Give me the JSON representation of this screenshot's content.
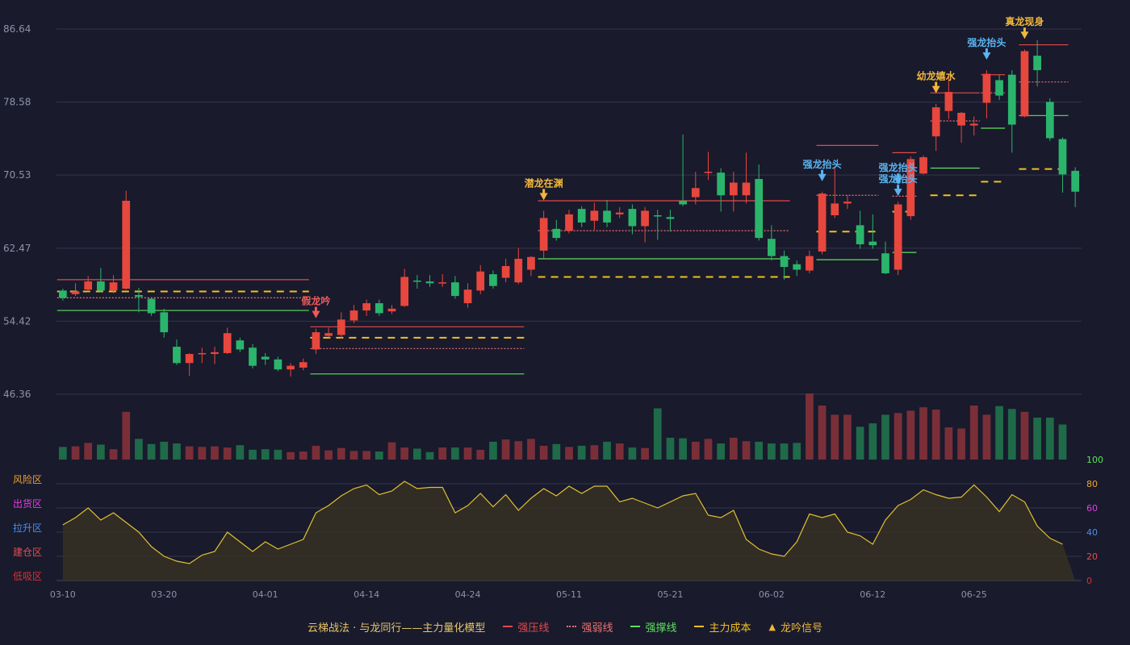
{
  "colors": {
    "background": "#191a2c",
    "up": "#e8473d",
    "down": "#2bb56c",
    "pressure": "#e14a4a",
    "weak": "#f07070",
    "support": "#5ee15e",
    "cost": "#f0c020",
    "signal_gold": "#f0b83a",
    "signal_blue": "#5ab4f0",
    "signal_red": "#f05a5a",
    "oscillator": "#e0c030"
  },
  "chart_data": {
    "type": "candlestick",
    "ylim": [
      46.36,
      86.64
    ],
    "yticks": [
      "86.64",
      "78.58",
      "70.53",
      "62.47",
      "54.42",
      "46.36"
    ],
    "x_labels": [
      {
        "i": 0,
        "label": "03-10"
      },
      {
        "i": 8,
        "label": "03-20"
      },
      {
        "i": 16,
        "label": "04-01"
      },
      {
        "i": 24,
        "label": "04-14"
      },
      {
        "i": 32,
        "label": "04-24"
      },
      {
        "i": 40,
        "label": "05-11"
      },
      {
        "i": 48,
        "label": "05-21"
      },
      {
        "i": 56,
        "label": "06-02"
      },
      {
        "i": 64,
        "label": "06-12"
      },
      {
        "i": 72,
        "label": "06-25"
      }
    ],
    "candles": [
      [
        57.8,
        57.0,
        58.0,
        56.7
      ],
      [
        57.4,
        57.7,
        58.6,
        57.2
      ],
      [
        57.9,
        58.8,
        59.4,
        57.7
      ],
      [
        58.8,
        57.8,
        60.3,
        57.6
      ],
      [
        57.8,
        58.7,
        59.5,
        57.5
      ],
      [
        58.0,
        67.7,
        68.8,
        57.9
      ],
      [
        57.3,
        57.1,
        58.1,
        55.4
      ],
      [
        56.9,
        55.3,
        57.0,
        55.0
      ],
      [
        55.4,
        53.2,
        55.8,
        52.6
      ],
      [
        51.6,
        49.8,
        52.4,
        49.6
      ],
      [
        49.8,
        50.8,
        50.9,
        48.4
      ],
      [
        50.9,
        50.9,
        51.5,
        49.8
      ],
      [
        50.8,
        51.0,
        51.6,
        49.7
      ],
      [
        50.9,
        53.1,
        53.7,
        50.8
      ],
      [
        52.3,
        51.3,
        52.6,
        51.0
      ],
      [
        51.5,
        49.5,
        51.9,
        49.2
      ],
      [
        50.5,
        50.2,
        50.9,
        49.6
      ],
      [
        50.2,
        49.1,
        50.5,
        48.9
      ],
      [
        49.1,
        49.5,
        49.8,
        48.3
      ],
      [
        49.3,
        49.9,
        50.3,
        49.0
      ],
      [
        51.3,
        53.2,
        53.6,
        50.8
      ],
      [
        52.8,
        53.1,
        53.7,
        52.6
      ],
      [
        52.9,
        54.6,
        55.4,
        52.5
      ],
      [
        54.5,
        55.6,
        56.2,
        54.2
      ],
      [
        55.6,
        56.4,
        56.8,
        55.0
      ],
      [
        56.4,
        55.3,
        56.8,
        55.0
      ],
      [
        55.5,
        55.8,
        56.2,
        55.2
      ],
      [
        56.1,
        59.3,
        60.2,
        56.0
      ],
      [
        58.9,
        58.8,
        59.5,
        58.0
      ],
      [
        58.8,
        58.6,
        59.5,
        58.2
      ],
      [
        58.6,
        58.7,
        59.6,
        58.2
      ],
      [
        58.7,
        57.2,
        59.4,
        56.9
      ],
      [
        56.4,
        57.9,
        58.6,
        55.9
      ],
      [
        57.8,
        59.9,
        60.6,
        57.4
      ],
      [
        59.6,
        58.3,
        60.0,
        58.0
      ],
      [
        59.2,
        60.5,
        61.3,
        58.7
      ],
      [
        58.7,
        61.3,
        62.5,
        58.5
      ],
      [
        60.1,
        61.5,
        61.6,
        59.4
      ],
      [
        62.2,
        65.8,
        66.6,
        61.3
      ],
      [
        64.6,
        63.6,
        65.6,
        63.3
      ],
      [
        64.4,
        66.2,
        66.7,
        64.1
      ],
      [
        66.8,
        65.3,
        67.1,
        64.8
      ],
      [
        65.5,
        66.6,
        67.5,
        64.5
      ],
      [
        66.6,
        65.3,
        67.8,
        64.8
      ],
      [
        66.2,
        66.4,
        67.0,
        65.8
      ],
      [
        66.8,
        64.9,
        67.3,
        64.0
      ],
      [
        64.9,
        66.6,
        67.0,
        63.1
      ],
      [
        66.1,
        66.0,
        66.7,
        63.4
      ],
      [
        65.9,
        65.7,
        66.7,
        64.3
      ],
      [
        67.7,
        67.3,
        75.0,
        67.1
      ],
      [
        68.1,
        69.1,
        70.9,
        67.3
      ],
      [
        70.9,
        70.9,
        73.1,
        70.0
      ],
      [
        70.8,
        68.3,
        71.3,
        66.5
      ],
      [
        68.3,
        69.7,
        70.9,
        66.5
      ],
      [
        68.3,
        69.7,
        73.0,
        67.4
      ],
      [
        70.1,
        63.6,
        71.7,
        63.3
      ],
      [
        63.5,
        61.6,
        65.0,
        61.1
      ],
      [
        61.6,
        60.4,
        62.2,
        59.0
      ],
      [
        60.7,
        60.1,
        61.1,
        59.4
      ],
      [
        60.0,
        61.6,
        62.2,
        59.7
      ],
      [
        62.1,
        68.5,
        68.7,
        61.8
      ],
      [
        66.1,
        67.4,
        71.5,
        65.8
      ],
      [
        67.4,
        67.6,
        68.3,
        66.8
      ],
      [
        65.0,
        62.9,
        66.6,
        62.4
      ],
      [
        63.2,
        62.8,
        66.2,
        62.4
      ],
      [
        61.9,
        59.7,
        63.2,
        59.6
      ],
      [
        60.1,
        67.3,
        67.6,
        59.5
      ],
      [
        66.0,
        72.3,
        72.6,
        65.6
      ],
      [
        70.7,
        72.5,
        72.7,
        70.6
      ],
      [
        74.8,
        78.0,
        78.4,
        73.2
      ],
      [
        77.6,
        79.7,
        81.4,
        76.7
      ],
      [
        76.0,
        77.4,
        77.5,
        74.1
      ],
      [
        76.0,
        76.2,
        77.0,
        74.9
      ],
      [
        78.5,
        81.7,
        82.1,
        76.8
      ],
      [
        81.0,
        79.3,
        81.6,
        78.8
      ],
      [
        81.6,
        76.1,
        82.1,
        73.0
      ],
      [
        77.0,
        84.2,
        84.4,
        76.9
      ],
      [
        83.7,
        82.1,
        85.4,
        80.3
      ],
      [
        78.6,
        74.6,
        79.0,
        74.3
      ],
      [
        74.5,
        70.6,
        74.7,
        68.6
      ],
      [
        71.0,
        68.7,
        71.4,
        67.0
      ]
    ],
    "volume": [
      22,
      23,
      29,
      26,
      18,
      83,
      36,
      27,
      31,
      28,
      23,
      22,
      23,
      21,
      25,
      17,
      18,
      17,
      13,
      14,
      24,
      16,
      20,
      15,
      15,
      14,
      30,
      21,
      19,
      13,
      21,
      21,
      21,
      17,
      31,
      35,
      32,
      36,
      24,
      27,
      22,
      24,
      25,
      31,
      28,
      21,
      20,
      89,
      38,
      37,
      31,
      36,
      28,
      38,
      32,
      31,
      28,
      28,
      29,
      115,
      94,
      78,
      78,
      57,
      63,
      78,
      81,
      85,
      91,
      87,
      56,
      54,
      94,
      78,
      93,
      88,
      83,
      73,
      73,
      61
    ],
    "y2_ticks": [
      "100",
      "80",
      "60",
      "40",
      "20",
      "0"
    ],
    "zone_labels": [
      "风险区",
      "出货区",
      "拉升区",
      "建仓区",
      "低吸区"
    ],
    "oscillator": [
      46,
      52,
      60,
      50,
      56,
      48,
      40,
      28,
      20,
      16,
      14,
      21,
      24,
      40,
      32,
      24,
      32,
      26,
      30,
      34,
      56,
      62,
      70,
      76,
      79,
      71,
      74,
      82,
      76,
      77,
      77,
      56,
      62,
      72,
      61,
      71,
      58,
      68,
      76,
      70,
      78,
      72,
      78,
      78,
      65,
      68,
      64,
      60,
      65,
      70,
      72,
      54,
      52,
      58,
      34,
      26,
      22,
      20,
      32,
      55,
      52,
      55,
      40,
      37,
      30,
      50,
      62,
      67,
      75,
      71,
      68,
      69,
      79,
      69,
      57,
      71,
      65,
      45,
      35,
      30
    ],
    "levels": [
      {
        "type": "pressure",
        "from": 0,
        "to": 19,
        "price": 59.0
      },
      {
        "type": "weak",
        "from": 0,
        "to": 19,
        "price": 57.0
      },
      {
        "type": "support",
        "from": 0,
        "to": 19,
        "price": 55.6
      },
      {
        "type": "cost",
        "from": 0,
        "to": 19,
        "price": 57.7
      },
      {
        "type": "pressure",
        "from": 20,
        "to": 36,
        "price": 53.8
      },
      {
        "type": "weak",
        "from": 20,
        "to": 36,
        "price": 51.4
      },
      {
        "type": "support",
        "from": 20,
        "to": 36,
        "price": 48.6
      },
      {
        "type": "cost",
        "from": 20,
        "to": 36,
        "price": 52.6
      },
      {
        "type": "pressure",
        "from": 38,
        "to": 57,
        "price": 67.7
      },
      {
        "type": "weak",
        "from": 38,
        "to": 57,
        "price": 64.4
      },
      {
        "type": "support",
        "from": 38,
        "to": 57,
        "price": 61.3
      },
      {
        "type": "cost",
        "from": 38,
        "to": 57,
        "price": 59.3
      },
      {
        "type": "pressure",
        "from": 60,
        "to": 64,
        "price": 73.8
      },
      {
        "type": "weak",
        "from": 60,
        "to": 64,
        "price": 68.3
      },
      {
        "type": "support",
        "from": 60,
        "to": 64,
        "price": 61.2
      },
      {
        "type": "cost",
        "from": 60,
        "to": 64,
        "price": 64.3
      },
      {
        "type": "pressure",
        "from": 66,
        "to": 67,
        "price": 73.0
      },
      {
        "type": "weak",
        "from": 66,
        "to": 67,
        "price": 68.2
      },
      {
        "type": "support",
        "from": 66,
        "to": 67,
        "price": 62.0
      },
      {
        "type": "cost",
        "from": 66,
        "to": 67,
        "price": 66.5
      },
      {
        "type": "pressure",
        "from": 69,
        "to": 72,
        "price": 79.6
      },
      {
        "type": "weak",
        "from": 69,
        "to": 72,
        "price": 76.5
      },
      {
        "type": "support",
        "from": 69,
        "to": 72,
        "price": 71.3
      },
      {
        "type": "cost",
        "from": 69,
        "to": 72,
        "price": 68.3
      },
      {
        "type": "pressure",
        "from": 73,
        "to": 74,
        "price": 81.6
      },
      {
        "type": "weak",
        "from": 73,
        "to": 74,
        "price": 79.6
      },
      {
        "type": "support",
        "from": 73,
        "to": 74,
        "price": 75.7
      },
      {
        "type": "cost",
        "from": 73,
        "to": 74,
        "price": 69.8
      },
      {
        "type": "pressure",
        "from": 76,
        "to": 79,
        "price": 84.9
      },
      {
        "type": "weak",
        "from": 76,
        "to": 79,
        "price": 80.8
      },
      {
        "type": "support",
        "from": 76,
        "to": 79,
        "price": 77.1
      },
      {
        "type": "cost",
        "from": 76,
        "to": 79,
        "price": 71.2
      }
    ],
    "signals": [
      {
        "i": 20,
        "text": "假龙吟",
        "kind": "red"
      },
      {
        "i": 38,
        "text": "潜龙在渊",
        "kind": "gold"
      },
      {
        "i": 60,
        "text": "强龙抬头",
        "kind": "blue"
      },
      {
        "i": 66,
        "text": "强龙抬头",
        "kind": "blue"
      },
      {
        "i": 66,
        "text": "强龙抬头",
        "kind": "blue",
        "pos": "lower"
      },
      {
        "i": 69,
        "text": "幼龙嬉水",
        "kind": "gold"
      },
      {
        "i": 73,
        "text": "强龙抬头",
        "kind": "blue"
      },
      {
        "i": 76,
        "text": "真龙现身",
        "kind": "gold"
      }
    ]
  },
  "legend": {
    "title": "云梯战法 · 与龙同行——主力量化模型",
    "pressure": "强压线",
    "weak": "强弱线",
    "support": "强撑线",
    "cost": "主力成本",
    "signal": "龙吟信号"
  }
}
